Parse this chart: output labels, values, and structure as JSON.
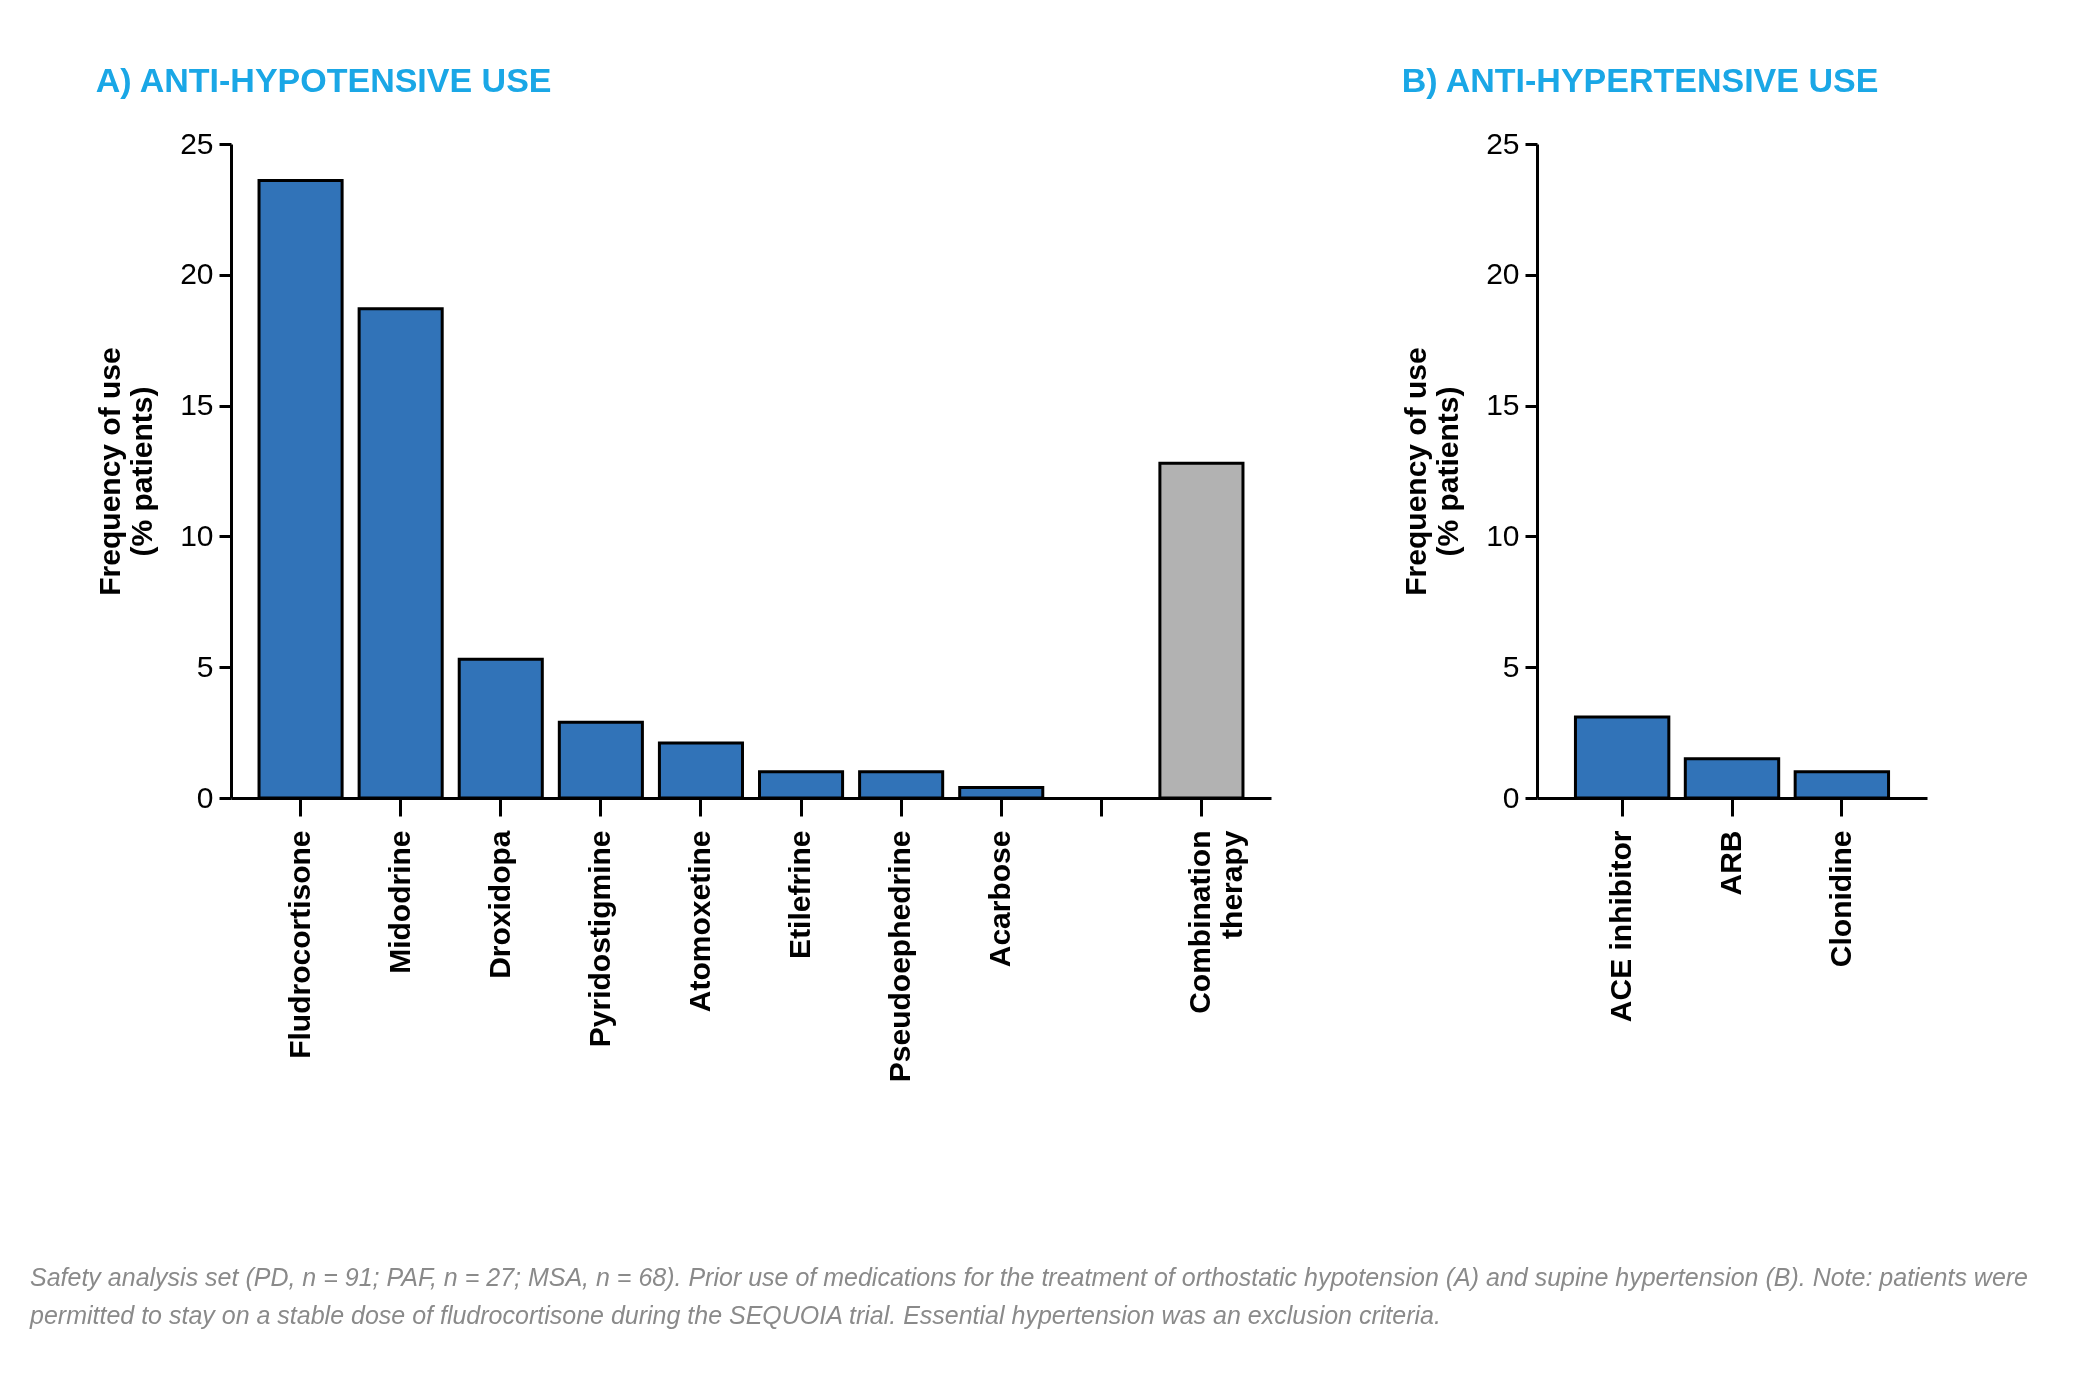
{
  "chart_data": [
    {
      "type": "bar",
      "title": "A) ANTI-HYPOTENSIVE USE",
      "ylabel": "Frequency of use (% patients)",
      "categories": [
        "Fludrocortisone",
        "Midodrine",
        "Droxidopa",
        "Pyridostigmine",
        "Atomoxetine",
        "Etilefrine",
        "Pseudoephedrine",
        "Acarbose",
        null,
        "Combination therapy"
      ],
      "values": [
        23.6,
        18.7,
        5.3,
        2.9,
        2.1,
        1.0,
        1.0,
        0.4,
        null,
        12.8
      ],
      "colors": [
        "#3173b8",
        "#3173b8",
        "#3173b8",
        "#3173b8",
        "#3173b8",
        "#3173b8",
        "#3173b8",
        "#3173b8",
        "#3173b8",
        "#b2b2b2"
      ],
      "ylim": [
        0,
        25
      ],
      "yticks": [
        0,
        5,
        10,
        15,
        20,
        25
      ],
      "grid": false,
      "legend": false,
      "annotations": [
        "Safety analysis set (PD, n = 91; PAF, n = 27; MSA, n = 68). Prior use of medications for the treatment of orthostatic hypotension (A) and supine hypertension (B). Note: patients were permitted to stay on a stable dose of fludrocortisone during the SEQUOIA trial. Essential hypertension was an exclusion criteria."
      ]
    },
    {
      "type": "bar",
      "title": "B) ANTI-HYPERTENSIVE USE",
      "ylabel": "Frequency of use (% patients)",
      "categories": [
        "ACE inhibitor",
        "ARB",
        "Clonidine"
      ],
      "values": [
        3.1,
        1.5,
        1.0
      ],
      "colors": [
        "#3173b8",
        "#3173b8",
        "#3173b8"
      ],
      "ylim": [
        0,
        25
      ],
      "yticks": [
        0,
        5,
        10,
        15,
        20,
        25
      ],
      "grid": false,
      "legend": false
    }
  ]
}
